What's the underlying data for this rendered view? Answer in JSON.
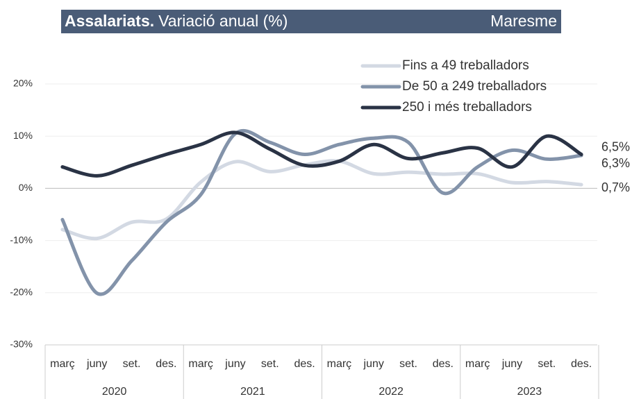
{
  "chart_data": {
    "type": "line",
    "title": "Assalariats.",
    "subtitle": "Variació anual (%)",
    "region": "Maresme",
    "categories": [
      "març",
      "juny",
      "set.",
      "des.",
      "març",
      "juny",
      "set.",
      "des.",
      "març",
      "juny",
      "set.",
      "des.",
      "març",
      "juny",
      "set.",
      "des."
    ],
    "years": [
      "2020",
      "2021",
      "2022",
      "2023"
    ],
    "ylim": [
      -30,
      20
    ],
    "yticks": [
      {
        "value": -30,
        "label": "-30%"
      },
      {
        "value": -20,
        "label": "-20%"
      },
      {
        "value": -10,
        "label": "-10%"
      },
      {
        "value": 0,
        "label": "0%"
      },
      {
        "value": 10,
        "label": "10%"
      },
      {
        "value": 20,
        "label": "20%"
      }
    ],
    "grid": true,
    "legend": "top-right",
    "series": [
      {
        "name": "Fins a 49 treballadors",
        "color": "#d3d9e3",
        "values": [
          -7.9,
          -9.6,
          -6.5,
          -5.9,
          1.2,
          5.1,
          3.2,
          4.5,
          5.2,
          2.8,
          3.1,
          2.7,
          2.8,
          1.1,
          1.3,
          0.7
        ],
        "value_labels": [
          null,
          null,
          null,
          null,
          null,
          null,
          null,
          null,
          null,
          null,
          null,
          null,
          null,
          null,
          null,
          "0,7%"
        ]
      },
      {
        "name": "De 50 a 249 treballadors",
        "color": "#8393aa",
        "values": [
          -6.0,
          -20.1,
          -13.9,
          -6.5,
          -1.2,
          10.5,
          8.8,
          6.5,
          8.4,
          9.6,
          8.8,
          -0.9,
          4.1,
          7.3,
          5.6,
          6.3
        ],
        "value_labels": [
          null,
          null,
          null,
          null,
          null,
          null,
          null,
          null,
          null,
          null,
          null,
          null,
          null,
          null,
          null,
          "6,3%"
        ]
      },
      {
        "name": "250 i més treballadors",
        "color": "#2a3345",
        "values": [
          4.1,
          2.4,
          4.4,
          6.5,
          8.4,
          10.7,
          7.5,
          4.4,
          5.2,
          8.4,
          5.7,
          6.8,
          7.7,
          4.1,
          10.0,
          6.5
        ],
        "value_labels": [
          null,
          null,
          null,
          null,
          null,
          null,
          null,
          null,
          null,
          null,
          null,
          null,
          null,
          null,
          null,
          "6,5%"
        ]
      }
    ]
  }
}
